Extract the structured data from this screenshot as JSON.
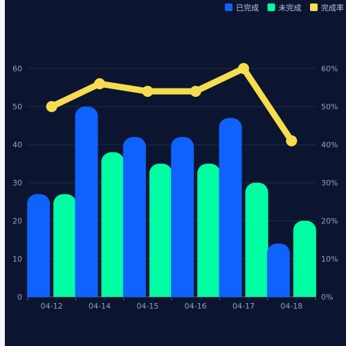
{
  "chart_data": {
    "type": "bar",
    "categories": [
      "04-12",
      "04-14",
      "04-15",
      "04-16",
      "04-17",
      "04-18"
    ],
    "series": [
      {
        "name": "已完成",
        "kind": "bar",
        "color": "#0f62fe",
        "values": [
          27,
          50,
          42,
          42,
          47,
          14
        ]
      },
      {
        "name": "未完成",
        "kind": "bar",
        "color": "#00ffa3",
        "values": [
          27,
          38,
          35,
          35,
          30,
          20
        ]
      },
      {
        "name": "完成率",
        "kind": "line",
        "axis": "right",
        "color": "#f7dd4e",
        "values": [
          50,
          56,
          54,
          54,
          60,
          41
        ]
      }
    ],
    "y_left": {
      "min": 0,
      "max": 60,
      "ticks": [
        "0",
        "10",
        "20",
        "30",
        "40",
        "50",
        "60"
      ]
    },
    "y_right": {
      "min": 0,
      "max": 60,
      "ticks": [
        "0%",
        "10%",
        "20%",
        "30%",
        "40%",
        "50%",
        "60%"
      ]
    },
    "grid": true,
    "legend_position": "top-right"
  }
}
